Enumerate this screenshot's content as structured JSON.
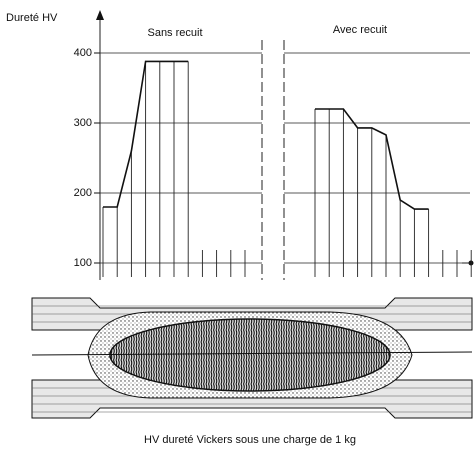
{
  "chart_data": [
    {
      "type": "line",
      "title": "Sans recuit",
      "y_label": "Dureté HV",
      "categories": [
        null,
        null,
        null,
        null,
        null,
        null,
        null
      ],
      "values": [
        180,
        180,
        260,
        388,
        388,
        388,
        388
      ],
      "color": "#111111",
      "ylim": [
        80,
        460
      ],
      "yticks": [
        100,
        200,
        300,
        400
      ],
      "grid": true
    },
    {
      "type": "line",
      "title": "Avec recuit",
      "categories": [
        null,
        null,
        null,
        null,
        null,
        null,
        null,
        null,
        null
      ],
      "values": [
        320,
        320,
        320,
        293,
        293,
        283,
        190,
        177,
        177
      ],
      "color": "#111111",
      "ylim": [
        80,
        460
      ],
      "grid": true
    }
  ],
  "caption": "HV   dureté Vickers sous une charge de 1 kg"
}
